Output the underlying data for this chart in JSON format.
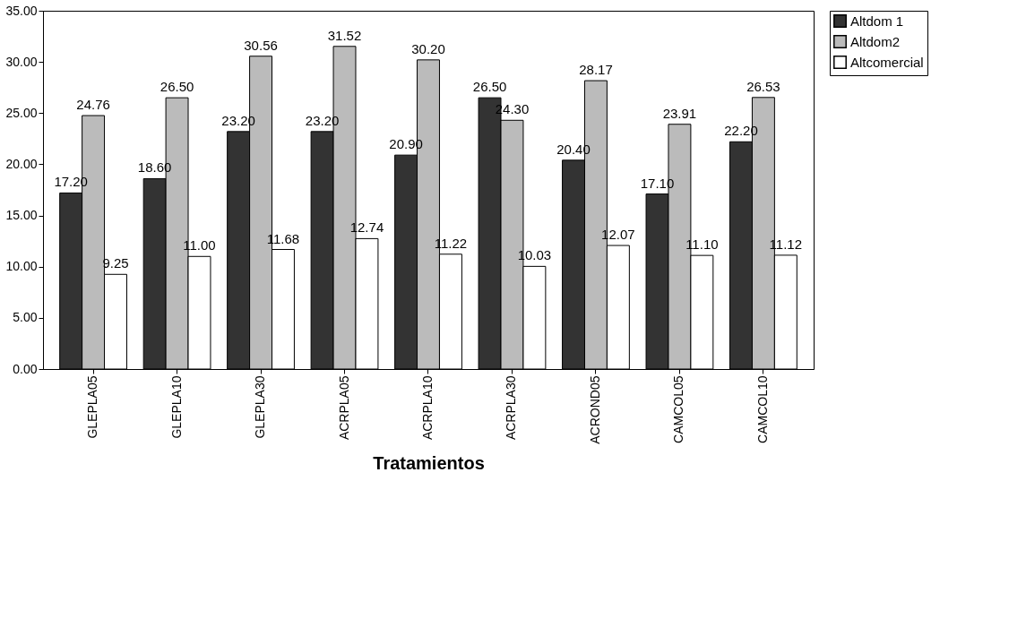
{
  "chart_data": {
    "type": "bar",
    "xlabel": "Tratamientos",
    "categories": [
      "GLEPLA05",
      "GLEPLA10",
      "GLEPLA30",
      "ACRPLA05",
      "ACRPLA10",
      "ACRPLA30",
      "ACROND05",
      "CAMCOL05",
      "CAMCOL10"
    ],
    "series": [
      {
        "name": "Altdom 1",
        "color": "#333333",
        "values": [
          17.2,
          18.6,
          23.2,
          23.2,
          20.9,
          26.5,
          20.4,
          17.1,
          22.2
        ],
        "value_labels": [
          "17.20",
          "18.60",
          "23.20",
          "23.20",
          "20.90",
          "26.50",
          "20.40",
          "17.10",
          "22.20"
        ]
      },
      {
        "name": "Altdom2",
        "color": "#bbbbbb",
        "values": [
          24.76,
          26.5,
          30.56,
          31.52,
          30.2,
          24.3,
          28.17,
          23.91,
          26.53
        ],
        "value_labels": [
          "24.76",
          "26.50",
          "30.56",
          "31.52",
          "30.20",
          "24.30",
          "28.17",
          "23.91",
          "26.53"
        ]
      },
      {
        "name": "Altcomercial",
        "color": "#ffffff",
        "values": [
          9.25,
          11.0,
          11.68,
          12.74,
          11.22,
          10.03,
          12.07,
          11.1,
          11.12
        ],
        "value_labels": [
          "9.25",
          "11.00",
          "11.68",
          "12.74",
          "11.22",
          "10.03",
          "12.07",
          "11.10",
          "11.12"
        ]
      }
    ],
    "ylim": [
      0,
      35
    ],
    "yticks": [
      {
        "value": 0,
        "label": "0.00"
      },
      {
        "value": 5,
        "label": "5.00"
      },
      {
        "value": 10,
        "label": "10.00"
      },
      {
        "value": 15,
        "label": "15.00"
      },
      {
        "value": 20,
        "label": "20.00"
      },
      {
        "value": 25,
        "label": "25.00"
      },
      {
        "value": 30,
        "label": "30.00"
      },
      {
        "value": 35,
        "label": "35.00"
      }
    ],
    "grid": false,
    "legend": "right"
  }
}
